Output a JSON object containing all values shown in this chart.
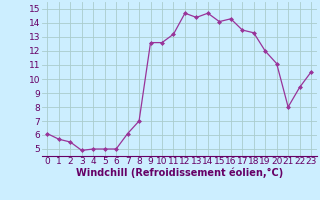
{
  "x": [
    0,
    1,
    2,
    3,
    4,
    5,
    6,
    7,
    8,
    9,
    10,
    11,
    12,
    13,
    14,
    15,
    16,
    17,
    18,
    19,
    20,
    21,
    22,
    23
  ],
  "y": [
    6.1,
    5.7,
    5.5,
    4.9,
    5.0,
    5.0,
    5.0,
    6.1,
    7.0,
    12.6,
    12.6,
    13.2,
    14.7,
    14.4,
    14.7,
    14.1,
    14.3,
    13.5,
    13.3,
    12.0,
    11.1,
    8.0,
    9.4,
    10.5
  ],
  "line_color": "#993399",
  "marker": "D",
  "marker_size": 2.0,
  "background_color": "#cceeff",
  "grid_color": "#aacccc",
  "xlabel": "Windchill (Refroidissement éolien,°C)",
  "xlabel_fontsize": 7,
  "xlim": [
    -0.5,
    23.5
  ],
  "ylim": [
    4.5,
    15.5
  ],
  "yticks": [
    5,
    6,
    7,
    8,
    9,
    10,
    11,
    12,
    13,
    14,
    15
  ],
  "xticks": [
    0,
    1,
    2,
    3,
    4,
    5,
    6,
    7,
    8,
    9,
    10,
    11,
    12,
    13,
    14,
    15,
    16,
    17,
    18,
    19,
    20,
    21,
    22,
    23
  ],
  "tick_fontsize": 6.5,
  "tick_color": "#660066",
  "axes_label_color": "#660066",
  "line_width": 0.9
}
